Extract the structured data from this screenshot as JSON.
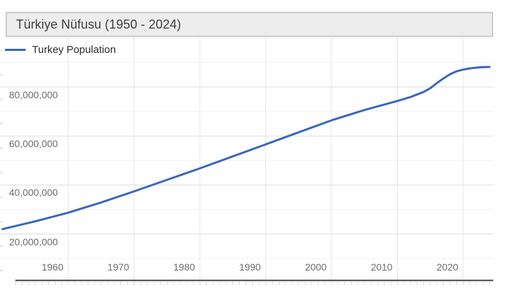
{
  "header": {
    "title": "Türkiye Nüfusu (1950 - 2024)"
  },
  "legend": {
    "label": "Turkey Population"
  },
  "colors": {
    "series_blue": "#3a66bd",
    "title_bar_bg": "#ededed",
    "title_bar_border": "#cbcbcb",
    "grid_major": "#dcdcdc",
    "grid_minor": "#f0f0f0",
    "grid_vertical": "#e6e6e6",
    "axis_line": "#454545",
    "tick_color": "#d6d6d6",
    "axis_label": "#6b6b6b"
  },
  "chart_data": {
    "type": "line",
    "title": "Türkiye Nüfusu (1950 - 2024)",
    "xlabel": "",
    "ylabel": "",
    "xlim": [
      1950,
      2024
    ],
    "ylim": [
      0,
      100000000
    ],
    "grid": "on",
    "legend_position": "top-left-inside",
    "x_ticks": [
      1960,
      1970,
      1980,
      1990,
      2000,
      2010,
      2020
    ],
    "x_tick_labels": [
      "1960",
      "1970",
      "1980",
      "1990",
      "2000",
      "2010",
      "2020"
    ],
    "y_ticks": [
      20000000,
      40000000,
      60000000,
      80000000
    ],
    "y_tick_labels": [
      "20,000,000",
      "40,000,000",
      "60,000,000",
      "80,000,000"
    ],
    "y_minor_gridlines": [
      10000000,
      30000000,
      50000000,
      70000000,
      90000000,
      100000000
    ],
    "series": [
      {
        "name": "Turkey Population",
        "color": "#3a66bd",
        "x": [
          1950,
          1955,
          1960,
          1965,
          1970,
          1975,
          1980,
          1985,
          1990,
          1995,
          2000,
          2005,
          2010,
          2012,
          2014,
          2015,
          2016,
          2017,
          2018,
          2019,
          2020,
          2021,
          2022,
          2023,
          2024
        ],
        "values": [
          22000000,
          25200000,
          28700000,
          32900000,
          37400000,
          42100000,
          46800000,
          51700000,
          56600000,
          61500000,
          66400000,
          70600000,
          74300000,
          75900000,
          78000000,
          79500000,
          81600000,
          83500000,
          85200000,
          86400000,
          87100000,
          87600000,
          87900000,
          88100000,
          88200000
        ]
      }
    ]
  }
}
